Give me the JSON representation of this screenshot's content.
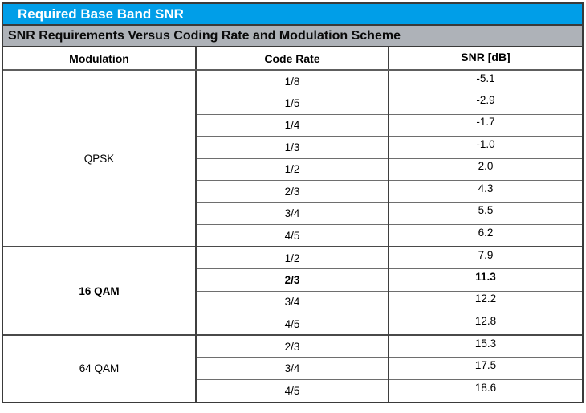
{
  "title": "Required Base Band SNR",
  "subtitle": "SNR Requirements Versus Coding Rate and Modulation Scheme",
  "colors": {
    "title_bar_bg": "#009EE8",
    "title_bar_text": "#FFFFFF",
    "subtitle_bar_bg": "#AEB2B8",
    "subtitle_bar_text": "#0A0A0A",
    "outer_border": "#3A3A3A",
    "row_line": "#6E6E6E",
    "group_line": "#4A4A4A"
  },
  "table": {
    "headers": [
      "Modulation",
      "Code Rate",
      "SNR [dB]"
    ],
    "groups": [
      {
        "modulation": "QPSK",
        "bold": false,
        "rows": [
          {
            "code_rate": "1/8",
            "snr": "-5.1",
            "bold": false
          },
          {
            "code_rate": "1/5",
            "snr": "-2.9",
            "bold": false
          },
          {
            "code_rate": "1/4",
            "snr": "-1.7",
            "bold": false
          },
          {
            "code_rate": "1/3",
            "snr": "-1.0",
            "bold": false
          },
          {
            "code_rate": "1/2",
            "snr": "2.0",
            "bold": false
          },
          {
            "code_rate": "2/3",
            "snr": "4.3",
            "bold": false
          },
          {
            "code_rate": "3/4",
            "snr": "5.5",
            "bold": false
          },
          {
            "code_rate": "4/5",
            "snr": "6.2",
            "bold": false
          }
        ]
      },
      {
        "modulation": "16 QAM",
        "bold": true,
        "rows": [
          {
            "code_rate": "1/2",
            "snr": "7.9",
            "bold": false
          },
          {
            "code_rate": "2/3",
            "snr": "11.3",
            "bold": true
          },
          {
            "code_rate": "3/4",
            "snr": "12.2",
            "bold": false
          },
          {
            "code_rate": "4/5",
            "snr": "12.8",
            "bold": false
          }
        ]
      },
      {
        "modulation": "64 QAM",
        "bold": false,
        "rows": [
          {
            "code_rate": "2/3",
            "snr": "15.3",
            "bold": false
          },
          {
            "code_rate": "3/4",
            "snr": "17.5",
            "bold": false
          },
          {
            "code_rate": "4/5",
            "snr": "18.6",
            "bold": false
          }
        ]
      }
    ]
  }
}
